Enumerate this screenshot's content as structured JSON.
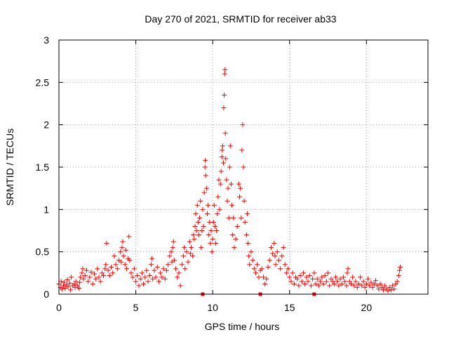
{
  "chart_data": {
    "type": "scatter",
    "title": "Day 270 of 2021, SRMTID for receiver ab33",
    "xlabel": "GPS time / hours",
    "ylabel": "SRMTID / TECUs",
    "xlim": [
      0,
      24
    ],
    "ylim": [
      0,
      3
    ],
    "x_ticks": [
      0,
      5,
      10,
      15,
      20
    ],
    "x_tick_labels": [
      "0",
      "5",
      "10",
      "15",
      "20"
    ],
    "y_ticks": [
      0,
      0.5,
      1,
      1.5,
      2,
      2.5,
      3
    ],
    "y_tick_labels": [
      "0",
      "0.5",
      "1",
      "1.5",
      "2",
      "2.5",
      "3"
    ],
    "grid": true,
    "marker": "+",
    "marker_color": "#ff0000",
    "axis_color": "#000000",
    "grid_color": "#a0a0a0",
    "series": [
      {
        "name": "SRMTID",
        "points": [
          [
            0.0,
            0.12
          ],
          [
            0.1,
            0.08
          ],
          [
            0.15,
            0.15
          ],
          [
            0.2,
            0.06
          ],
          [
            0.3,
            0.1
          ],
          [
            0.35,
            0.14
          ],
          [
            0.4,
            0.07
          ],
          [
            0.5,
            0.11
          ],
          [
            0.55,
            0.17
          ],
          [
            0.6,
            0.09
          ],
          [
            0.7,
            0.13
          ],
          [
            0.75,
            0.05
          ],
          [
            0.8,
            0.2
          ],
          [
            0.9,
            0.1
          ],
          [
            1.0,
            0.12
          ],
          [
            1.05,
            0.08
          ],
          [
            1.1,
            0.15
          ],
          [
            1.2,
            0.1
          ],
          [
            1.3,
            0.07
          ],
          [
            1.35,
            0.14
          ],
          [
            1.4,
            0.2
          ],
          [
            1.5,
            0.25
          ],
          [
            1.55,
            0.3
          ],
          [
            1.6,
            0.18
          ],
          [
            1.7,
            0.22
          ],
          [
            1.8,
            0.28
          ],
          [
            1.9,
            0.15
          ],
          [
            2.0,
            0.2
          ],
          [
            2.1,
            0.26
          ],
          [
            2.2,
            0.12
          ],
          [
            2.3,
            0.24
          ],
          [
            2.4,
            0.18
          ],
          [
            2.5,
            0.3
          ],
          [
            2.6,
            0.2
          ],
          [
            2.7,
            0.15
          ],
          [
            2.8,
            0.25
          ],
          [
            2.9,
            0.22
          ],
          [
            3.0,
            0.3
          ],
          [
            3.05,
            0.35
          ],
          [
            3.1,
            0.6
          ],
          [
            3.2,
            0.28
          ],
          [
            3.3,
            0.22
          ],
          [
            3.4,
            0.32
          ],
          [
            3.5,
            0.25
          ],
          [
            3.6,
            0.45
          ],
          [
            3.7,
            0.35
          ],
          [
            3.8,
            0.3
          ],
          [
            3.9,
            0.4
          ],
          [
            4.0,
            0.5
          ],
          [
            4.05,
            0.38
          ],
          [
            4.1,
            0.55
          ],
          [
            4.15,
            0.62
          ],
          [
            4.2,
            0.45
          ],
          [
            4.3,
            0.35
          ],
          [
            4.35,
            0.52
          ],
          [
            4.4,
            0.3
          ],
          [
            4.5,
            0.42
          ],
          [
            4.55,
            0.68
          ],
          [
            4.6,
            0.4
          ],
          [
            4.7,
            0.25
          ],
          [
            4.8,
            0.2
          ],
          [
            4.9,
            0.3
          ],
          [
            5.0,
            0.15
          ],
          [
            5.1,
            0.22
          ],
          [
            5.2,
            0.1
          ],
          [
            5.3,
            0.18
          ],
          [
            5.4,
            0.25
          ],
          [
            5.5,
            0.12
          ],
          [
            5.6,
            0.2
          ],
          [
            5.7,
            0.28
          ],
          [
            5.8,
            0.15
          ],
          [
            5.9,
            0.22
          ],
          [
            6.0,
            0.35
          ],
          [
            6.05,
            0.42
          ],
          [
            6.1,
            0.18
          ],
          [
            6.2,
            0.28
          ],
          [
            6.3,
            0.2
          ],
          [
            6.4,
            0.32
          ],
          [
            6.5,
            0.15
          ],
          [
            6.6,
            0.25
          ],
          [
            6.7,
            0.2
          ],
          [
            6.8,
            0.3
          ],
          [
            6.9,
            0.18
          ],
          [
            7.0,
            0.28
          ],
          [
            7.1,
            0.35
          ],
          [
            7.2,
            0.45
          ],
          [
            7.3,
            0.5
          ],
          [
            7.35,
            0.38
          ],
          [
            7.4,
            0.55
          ],
          [
            7.45,
            0.62
          ],
          [
            7.5,
            0.4
          ],
          [
            7.6,
            0.3
          ],
          [
            7.7,
            0.2
          ],
          [
            7.8,
            0.25
          ],
          [
            7.9,
            0.1
          ],
          [
            8.0,
            0.35
          ],
          [
            8.1,
            0.45
          ],
          [
            8.15,
            0.55
          ],
          [
            8.2,
            0.3
          ],
          [
            8.3,
            0.5
          ],
          [
            8.4,
            0.38
          ],
          [
            8.5,
            0.62
          ],
          [
            8.55,
            0.48
          ],
          [
            8.6,
            0.55
          ],
          [
            8.7,
            0.45
          ],
          [
            8.75,
            0.7
          ],
          [
            8.8,
            0.65
          ],
          [
            8.85,
            0.8
          ],
          [
            8.9,
            0.95
          ],
          [
            8.95,
            0.75
          ],
          [
            9.0,
            1.05
          ],
          [
            9.05,
            0.85
          ],
          [
            9.1,
            0.7
          ],
          [
            9.15,
            0.9
          ],
          [
            9.2,
            1.1
          ],
          [
            9.25,
            0.55
          ],
          [
            9.3,
            0.75
          ],
          [
            9.35,
            1.0
          ],
          [
            9.4,
            0.8
          ],
          [
            9.45,
            1.2
          ],
          [
            9.5,
            1.5
          ],
          [
            9.52,
            1.58
          ],
          [
            9.55,
            1.4
          ],
          [
            9.6,
            1.25
          ],
          [
            9.65,
            0.95
          ],
          [
            9.7,
            1.05
          ],
          [
            9.75,
            0.7
          ],
          [
            9.8,
            0.85
          ],
          [
            9.85,
            0.6
          ],
          [
            9.9,
            0.75
          ],
          [
            9.95,
            0.5
          ],
          [
            10.0,
            0.65
          ],
          [
            10.05,
            0.85
          ],
          [
            10.1,
            1.05
          ],
          [
            10.15,
            0.8
          ],
          [
            10.2,
            0.6
          ],
          [
            10.25,
            0.75
          ],
          [
            10.3,
            0.95
          ],
          [
            10.35,
            1.15
          ],
          [
            10.4,
            1.35
          ],
          [
            10.45,
            1.0
          ],
          [
            10.5,
            1.3
          ],
          [
            10.55,
            1.45
          ],
          [
            10.6,
            1.62
          ],
          [
            10.62,
            1.7
          ],
          [
            10.65,
            1.75
          ],
          [
            10.7,
            1.55
          ],
          [
            10.72,
            2.2
          ],
          [
            10.75,
            2.35
          ],
          [
            10.78,
            2.6
          ],
          [
            10.8,
            2.65
          ],
          [
            10.82,
            1.9
          ],
          [
            10.85,
            1.6
          ],
          [
            10.9,
            1.35
          ],
          [
            10.95,
            1.1
          ],
          [
            11.0,
            1.25
          ],
          [
            11.05,
            0.9
          ],
          [
            11.1,
            1.5
          ],
          [
            11.15,
            1.75
          ],
          [
            11.2,
            1.3
          ],
          [
            11.25,
            1.05
          ],
          [
            11.3,
            0.7
          ],
          [
            11.35,
            0.9
          ],
          [
            11.4,
            0.55
          ],
          [
            11.5,
            0.65
          ],
          [
            11.6,
            0.8
          ],
          [
            11.7,
            1.3
          ],
          [
            11.75,
            1.15
          ],
          [
            11.8,
            1.25
          ],
          [
            11.85,
            0.9
          ],
          [
            11.9,
            1.7
          ],
          [
            11.95,
            2.0
          ],
          [
            12.0,
            1.5
          ],
          [
            12.05,
            1.1
          ],
          [
            12.1,
            0.85
          ],
          [
            12.2,
            0.7
          ],
          [
            12.25,
            0.95
          ],
          [
            12.3,
            0.6
          ],
          [
            12.35,
            0.45
          ],
          [
            12.4,
            0.35
          ],
          [
            12.5,
            0.5
          ],
          [
            12.6,
            0.4
          ],
          [
            12.7,
            0.3
          ],
          [
            12.8,
            0.25
          ],
          [
            12.9,
            0.35
          ],
          [
            13.0,
            0.2
          ],
          [
            13.1,
            0.28
          ],
          [
            13.2,
            0.3
          ],
          [
            13.3,
            0.2
          ],
          [
            13.4,
            0.12
          ],
          [
            13.5,
            0.18
          ],
          [
            13.6,
            0.32
          ],
          [
            13.7,
            0.4
          ],
          [
            13.8,
            0.55
          ],
          [
            13.9,
            0.48
          ],
          [
            14.0,
            0.6
          ],
          [
            14.05,
            0.45
          ],
          [
            14.1,
            0.35
          ],
          [
            14.2,
            0.5
          ],
          [
            14.3,
            0.4
          ],
          [
            14.4,
            0.3
          ],
          [
            14.5,
            0.45
          ],
          [
            14.6,
            0.55
          ],
          [
            14.7,
            0.35
          ],
          [
            14.8,
            0.25
          ],
          [
            14.9,
            0.3
          ],
          [
            15.0,
            0.2
          ],
          [
            15.1,
            0.15
          ],
          [
            15.2,
            0.25
          ],
          [
            15.3,
            0.12
          ],
          [
            15.4,
            0.2
          ],
          [
            15.5,
            0.18
          ],
          [
            15.6,
            0.1
          ],
          [
            15.7,
            0.22
          ],
          [
            15.8,
            0.15
          ],
          [
            15.9,
            0.25
          ],
          [
            16.0,
            0.12
          ],
          [
            16.1,
            0.2
          ],
          [
            16.2,
            0.15
          ],
          [
            16.3,
            0.22
          ],
          [
            16.4,
            0.1
          ],
          [
            16.5,
            0.18
          ],
          [
            16.6,
            0.25
          ],
          [
            16.7,
            0.12
          ],
          [
            16.8,
            0.18
          ],
          [
            16.9,
            0.1
          ],
          [
            17.0,
            0.15
          ],
          [
            17.1,
            0.2
          ],
          [
            17.2,
            0.12
          ],
          [
            17.3,
            0.22
          ],
          [
            17.4,
            0.15
          ],
          [
            17.5,
            0.25
          ],
          [
            17.6,
            0.1
          ],
          [
            17.7,
            0.18
          ],
          [
            17.8,
            0.15
          ],
          [
            17.9,
            0.12
          ],
          [
            18.0,
            0.2
          ],
          [
            18.1,
            0.15
          ],
          [
            18.2,
            0.1
          ],
          [
            18.3,
            0.18
          ],
          [
            18.4,
            0.12
          ],
          [
            18.5,
            0.2
          ],
          [
            18.6,
            0.15
          ],
          [
            18.7,
            0.1
          ],
          [
            18.75,
            0.25
          ],
          [
            18.8,
            0.3
          ],
          [
            18.9,
            0.15
          ],
          [
            19.0,
            0.12
          ],
          [
            19.1,
            0.2
          ],
          [
            19.2,
            0.1
          ],
          [
            19.3,
            0.15
          ],
          [
            19.4,
            0.08
          ],
          [
            19.5,
            0.12
          ],
          [
            19.6,
            0.2
          ],
          [
            19.7,
            0.1
          ],
          [
            19.8,
            0.15
          ],
          [
            19.9,
            0.08
          ],
          [
            20.0,
            0.12
          ],
          [
            20.1,
            0.18
          ],
          [
            20.2,
            0.1
          ],
          [
            20.3,
            0.14
          ],
          [
            20.4,
            0.08
          ],
          [
            20.5,
            0.12
          ],
          [
            20.6,
            0.16
          ],
          [
            20.7,
            0.1
          ],
          [
            20.8,
            0.06
          ],
          [
            20.9,
            0.12
          ],
          [
            21.0,
            0.08
          ],
          [
            21.1,
            0.05
          ],
          [
            21.2,
            0.1
          ],
          [
            21.3,
            0.06
          ],
          [
            21.4,
            0.04
          ],
          [
            21.5,
            0.08
          ],
          [
            21.6,
            0.05
          ],
          [
            21.7,
            0.1
          ],
          [
            21.8,
            0.06
          ],
          [
            21.9,
            0.12
          ],
          [
            22.0,
            0.15
          ],
          [
            22.1,
            0.22
          ],
          [
            22.15,
            0.28
          ],
          [
            22.2,
            0.32
          ]
        ]
      }
    ],
    "outliers_at_zero": [
      [
        9.35,
        0.0
      ],
      [
        13.1,
        0.0
      ],
      [
        16.6,
        0.0
      ]
    ]
  }
}
